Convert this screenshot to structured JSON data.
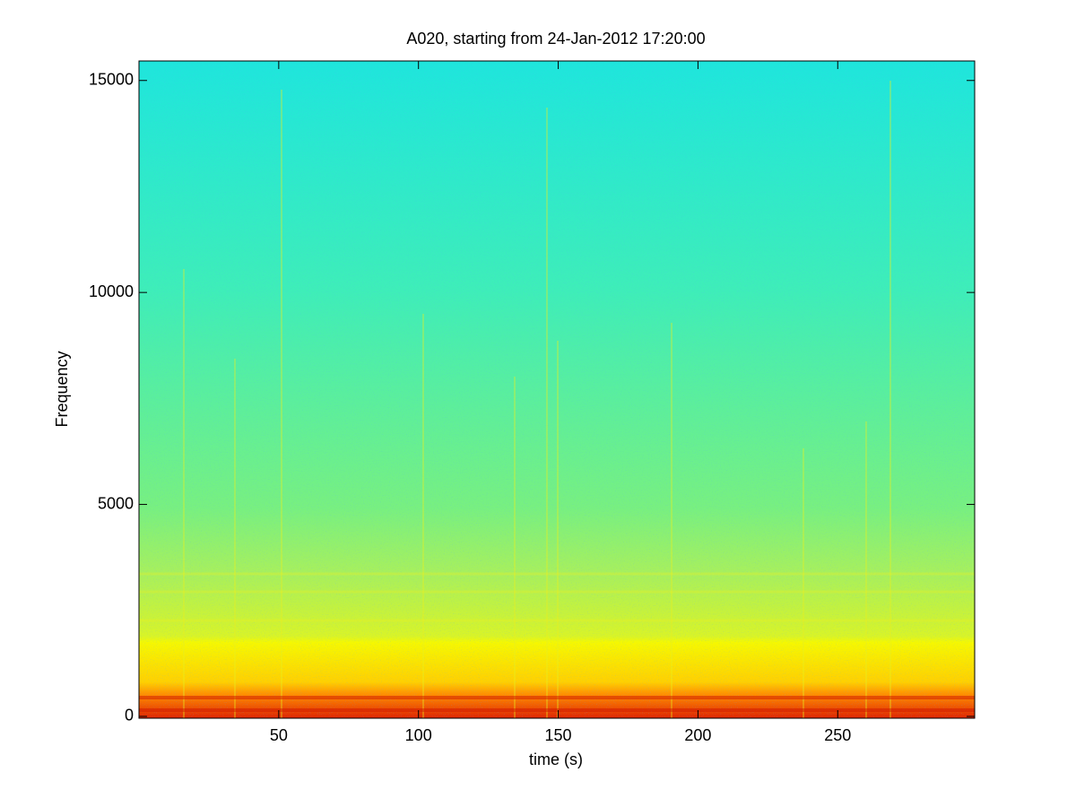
{
  "chart_data": {
    "type": "spectrogram",
    "title": "A020, starting from 24-Jan-2012 17:20:00",
    "xlabel": "time (s)",
    "ylabel": "Frequency",
    "xlim": [
      0,
      299
    ],
    "xticks": [
      50,
      100,
      150,
      200,
      250
    ],
    "ylim": [
      -43,
      15460
    ],
    "yticks": [
      0,
      5000,
      10000,
      15000
    ],
    "grid": false
  }
}
